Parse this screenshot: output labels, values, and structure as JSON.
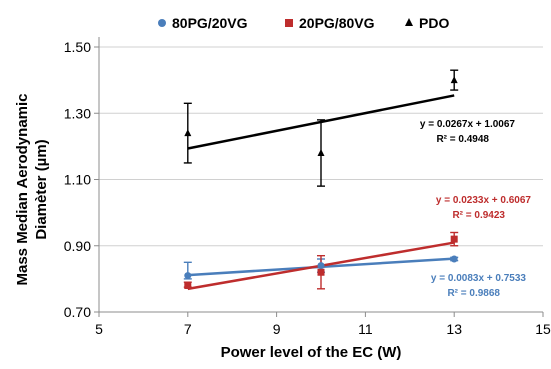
{
  "chart_data": {
    "type": "scatter",
    "xlabel": "Power level of the EC (W)",
    "ylabel_lines": [
      "Mass Median Aerodynamic",
      "Diamèter (µm)"
    ],
    "xlim": [
      5,
      15
    ],
    "ylim": [
      0.7,
      1.5
    ],
    "x_ticks": [
      5,
      7,
      9,
      11,
      13,
      15
    ],
    "x_tick_labels": [
      "5",
      "7",
      "9",
      "11",
      "13",
      "15"
    ],
    "y_ticks": [
      0.7,
      0.9,
      1.1,
      1.3,
      1.5
    ],
    "y_tick_labels": [
      "0.70",
      "0.90",
      "1.10",
      "1.30",
      "1.50"
    ],
    "grid": "horizontal",
    "legend_position": "top",
    "series": [
      {
        "name": "80PG/20VG",
        "color": "#4A7EBB",
        "marker": "circle",
        "x": [
          7,
          10,
          13
        ],
        "y": [
          0.81,
          0.84,
          0.86
        ],
        "err_low": [
          0.8,
          0.82,
          0.855
        ],
        "err_high": [
          0.85,
          0.86,
          0.865
        ],
        "trendline": {
          "slope": 0.0083,
          "intercept": 0.7533
        },
        "equation": "y = 0.0083x + 0.7533",
        "r2": "R² = 0.9868"
      },
      {
        "name": "20PG/80VG",
        "color": "#BE2D2D",
        "marker": "square",
        "x": [
          7,
          10,
          13
        ],
        "y": [
          0.78,
          0.82,
          0.92
        ],
        "err_low": [
          0.775,
          0.77,
          0.9
        ],
        "err_high": [
          0.79,
          0.87,
          0.94
        ],
        "trendline": {
          "slope": 0.0233,
          "intercept": 0.6067
        },
        "equation": "y = 0.0233x + 0.6067",
        "r2": "R² = 0.9423"
      },
      {
        "name": "PDO",
        "color": "#000000",
        "marker": "triangle",
        "x": [
          7,
          10,
          13
        ],
        "y": [
          1.24,
          1.18,
          1.4
        ],
        "err_low": [
          1.15,
          1.08,
          1.37
        ],
        "err_high": [
          1.33,
          1.28,
          1.43
        ],
        "trendline": {
          "slope": 0.0267,
          "intercept": 1.0067
        },
        "equation": "y = 0.0267x + 1.0067",
        "r2": "R² = 0.4948"
      }
    ]
  }
}
